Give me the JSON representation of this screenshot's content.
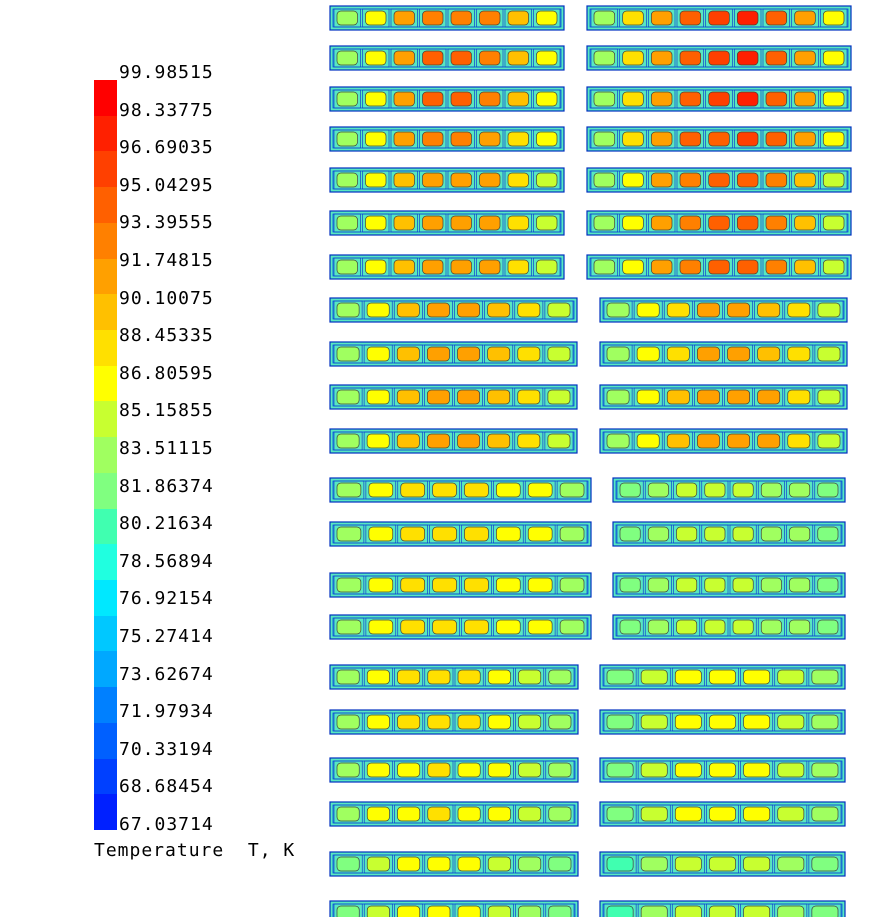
{
  "legend": {
    "title": "Temperature  T, K",
    "ticks": [
      "99.98515",
      "98.33775",
      "96.69035",
      "95.04295",
      "93.39555",
      "91.74815",
      "90.10075",
      "88.45335",
      "86.80595",
      "85.15855",
      "83.51115",
      "81.86374",
      "80.21634",
      "78.56894",
      "76.92154",
      "75.27414",
      "73.62674",
      "71.97934",
      "70.33194",
      "68.68454",
      "67.03714"
    ],
    "colors": [
      "#ff0000",
      "#ff2000",
      "#ff4000",
      "#ff6000",
      "#ff8000",
      "#ffa000",
      "#ffc000",
      "#ffe000",
      "#ffff00",
      "#c8ff30",
      "#a0ff60",
      "#80ff80",
      "#40ffb0",
      "#20ffe0",
      "#00e8ff",
      "#00c8ff",
      "#00a8ff",
      "#0080ff",
      "#0060ff",
      "#0040ff",
      "#0020ff"
    ]
  },
  "field": {
    "rows": [
      {
        "left": [
          83,
          86,
          91,
          93,
          93,
          93,
          90,
          86
        ],
        "right": [
          84,
          88,
          92,
          94,
          96,
          97,
          94,
          91,
          86
        ]
      },
      {
        "left": [
          83,
          86,
          92,
          94,
          94,
          93,
          90,
          86
        ],
        "right": [
          84,
          88,
          92,
          94,
          96,
          97,
          95,
          91,
          86
        ]
      },
      {
        "left": [
          83,
          86,
          92,
          94,
          94,
          93,
          90,
          86
        ],
        "right": [
          84,
          88,
          92,
          94,
          96,
          97,
          95,
          91,
          86
        ]
      },
      {
        "left": [
          83,
          86,
          91,
          93,
          93,
          92,
          89,
          86
        ],
        "right": [
          84,
          88,
          92,
          94,
          95,
          96,
          94,
          91,
          86
        ]
      },
      {
        "left": [
          83,
          86,
          90,
          92,
          92,
          91,
          89,
          85
        ],
        "right": [
          84,
          87,
          91,
          93,
          94,
          95,
          93,
          90,
          85
        ]
      },
      {
        "left": [
          83,
          86,
          90,
          92,
          92,
          91,
          89,
          85
        ],
        "right": [
          84,
          87,
          91,
          93,
          94,
          95,
          93,
          90,
          85
        ]
      },
      {
        "left": [
          83,
          86,
          90,
          92,
          92,
          91,
          89,
          85
        ],
        "right": [
          84,
          87,
          91,
          93,
          94,
          94,
          93,
          90,
          85
        ]
      },
      {
        "left": [
          83,
          87,
          90,
          91,
          91,
          90,
          88,
          85
        ],
        "right": [
          84,
          87,
          89,
          91,
          91,
          90,
          88,
          85
        ]
      },
      {
        "left": [
          83,
          87,
          90,
          91,
          91,
          90,
          88,
          85
        ],
        "right": [
          84,
          87,
          89,
          91,
          91,
          90,
          88,
          85
        ]
      },
      {
        "left": [
          83,
          87,
          90,
          92,
          92,
          90,
          88,
          85
        ],
        "right": [
          84,
          87,
          90,
          91,
          92,
          91,
          88,
          85
        ]
      },
      {
        "left": [
          83,
          87,
          90,
          92,
          92,
          90,
          88,
          85
        ],
        "right": [
          84,
          87,
          90,
          91,
          92,
          91,
          88,
          85
        ]
      },
      {
        "left": [
          84,
          87,
          88,
          88,
          88,
          87,
          86,
          84
        ],
        "right": [
          82,
          84,
          85,
          85,
          85,
          84,
          83,
          82
        ]
      },
      {
        "left": [
          84,
          87,
          88,
          88,
          88,
          87,
          86,
          84
        ],
        "right": [
          82,
          84,
          85,
          85,
          85,
          84,
          83,
          82
        ]
      },
      {
        "left": [
          84,
          87,
          88,
          88,
          88,
          87,
          86,
          84
        ],
        "right": [
          82,
          84,
          85,
          85,
          85,
          84,
          83,
          82
        ]
      },
      {
        "left": [
          84,
          87,
          88,
          88,
          88,
          87,
          86,
          84
        ],
        "right": [
          82,
          84,
          85,
          85,
          85,
          84,
          83,
          82
        ]
      },
      {
        "left": [
          83,
          86,
          88,
          88,
          88,
          87,
          85,
          83
        ],
        "right": [
          82,
          85,
          86,
          87,
          86,
          85,
          83
        ]
      },
      {
        "left": [
          83,
          86,
          88,
          88,
          88,
          87,
          85,
          83
        ],
        "right": [
          82,
          85,
          86,
          87,
          86,
          85,
          83
        ]
      },
      {
        "left": [
          83,
          86,
          87,
          88,
          87,
          86,
          85,
          83
        ],
        "right": [
          82,
          85,
          86,
          86,
          86,
          85,
          83
        ]
      },
      {
        "left": [
          83,
          86,
          87,
          88,
          87,
          86,
          85,
          83
        ],
        "right": [
          82,
          85,
          86,
          86,
          86,
          85,
          83
        ]
      },
      {
        "left": [
          82,
          85,
          86,
          87,
          86,
          85,
          84,
          82
        ],
        "right": [
          81,
          84,
          85,
          85,
          85,
          84,
          82
        ]
      },
      {
        "left": [
          82,
          85,
          86,
          87,
          86,
          85,
          84,
          82
        ],
        "right": [
          81,
          84,
          85,
          85,
          85,
          84,
          82
        ]
      }
    ]
  }
}
